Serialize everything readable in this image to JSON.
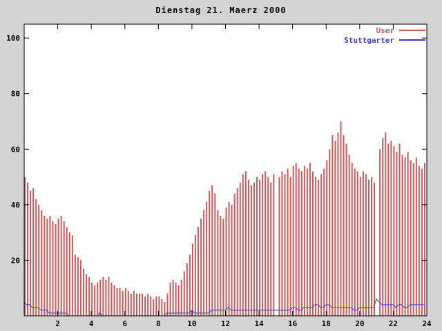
{
  "title": "Dienstag 21. Maerz 2000",
  "colors": {
    "background": "#d4d4d4",
    "plot_background": "#ffffff",
    "border": "#000000",
    "user_red": "#cc5a5a",
    "stuttgarter_blue": "#3c3cc8"
  },
  "chart_data": {
    "type": "bar",
    "title": "Dienstag 21. Maerz 2000",
    "xlabel": "",
    "ylabel": "",
    "xlim": [
      0,
      24
    ],
    "ylim": [
      0,
      105
    ],
    "x_ticks": [
      2,
      4,
      6,
      8,
      10,
      12,
      14,
      16,
      18,
      20,
      22,
      24
    ],
    "y_ticks": [
      20,
      40,
      60,
      80,
      100
    ],
    "grid": false,
    "legend_position": "top-right-inside",
    "x_unit": "hour of day",
    "points_per_day": 144,
    "series": [
      {
        "name": "User",
        "style": "impulses",
        "color": "#cc5a5a",
        "values": [
          50,
          48,
          45,
          46,
          42,
          40,
          38,
          36,
          35,
          36,
          34,
          33,
          35,
          36,
          34,
          32,
          30,
          29,
          22,
          21,
          20,
          17,
          15,
          14,
          12,
          11,
          12,
          13,
          14,
          13,
          14,
          12,
          11,
          10,
          10,
          9,
          10,
          9,
          8,
          9,
          8,
          8,
          8,
          7,
          8,
          7,
          6,
          7,
          7,
          6,
          5,
          8,
          12,
          13,
          12,
          11,
          13,
          16,
          19,
          22,
          26,
          29,
          32,
          35,
          38,
          41,
          45,
          47,
          44,
          38,
          36,
          35,
          39,
          41,
          40,
          44,
          46,
          48,
          51,
          52,
          49,
          47,
          48,
          50,
          49,
          51,
          52,
          50,
          48,
          51,
          0,
          50,
          52,
          51,
          53,
          50,
          54,
          55,
          53,
          52,
          54,
          53,
          55,
          52,
          50,
          49,
          51,
          53,
          56,
          60,
          65,
          63,
          66,
          70,
          65,
          62,
          58,
          55,
          53,
          52,
          50,
          52,
          51,
          49,
          50,
          48,
          0,
          60,
          64,
          66,
          62,
          63,
          61,
          59,
          62,
          58,
          57,
          59,
          56,
          55,
          57,
          54,
          53,
          55
        ]
      },
      {
        "name": "Stuttgarter",
        "style": "line",
        "color": "#3c3cc8",
        "values": [
          5,
          4,
          4,
          3,
          3,
          3,
          2,
          2,
          2,
          1,
          1,
          1,
          1,
          1,
          1,
          1,
          0,
          0,
          0,
          0,
          0,
          0,
          0,
          0,
          0,
          0,
          0,
          1,
          0,
          0,
          0,
          0,
          0,
          0,
          0,
          0,
          0,
          0,
          0,
          0,
          0,
          0,
          0,
          0,
          0,
          0,
          0,
          0,
          0,
          0,
          0,
          1,
          1,
          1,
          1,
          1,
          1,
          1,
          1,
          1,
          2,
          1,
          1,
          1,
          1,
          1,
          1,
          2,
          2,
          2,
          2,
          2,
          2,
          3,
          2,
          2,
          2,
          2,
          2,
          2,
          2,
          2,
          2,
          2,
          2,
          2,
          2,
          2,
          2,
          2,
          2,
          2,
          2,
          2,
          2,
          2,
          3,
          3,
          2,
          2,
          3,
          3,
          3,
          3,
          4,
          4,
          3,
          3,
          4,
          4,
          3,
          3,
          3,
          3,
          3,
          3,
          3,
          3,
          2,
          2,
          3,
          3,
          3,
          3,
          3,
          3,
          6,
          5,
          4,
          4,
          4,
          4,
          4,
          3,
          4,
          4,
          3,
          3,
          4,
          4,
          4,
          4,
          4,
          4
        ]
      }
    ]
  }
}
